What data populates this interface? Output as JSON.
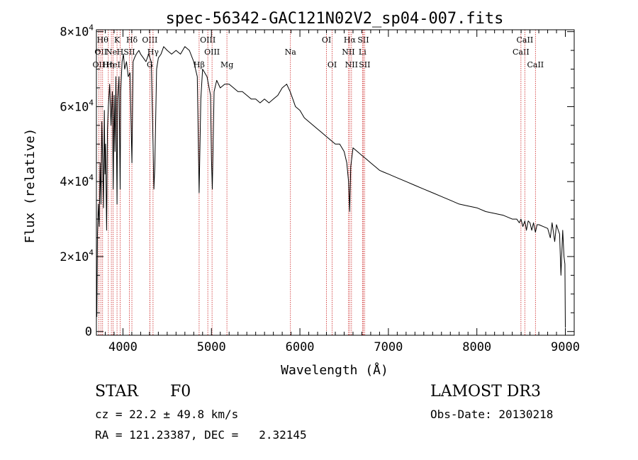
{
  "chart_data": {
    "type": "line",
    "title": "spec-56342-GAC121N02V2_sp04-007.fits",
    "xlabel": "Wavelength (Å)",
    "ylabel": "Flux (relative)",
    "xlim": [
      3700,
      9100
    ],
    "ylim": [
      -1000,
      80500
    ],
    "x_ticks": [
      {
        "value": 4000,
        "label": "4000"
      },
      {
        "value": 5000,
        "label": "5000"
      },
      {
        "value": 6000,
        "label": "6000"
      },
      {
        "value": 7000,
        "label": "7000"
      },
      {
        "value": 8000,
        "label": "8000"
      },
      {
        "value": 9000,
        "label": "9000"
      }
    ],
    "y_ticks": [
      {
        "value": 0,
        "label": "0",
        "exp": ""
      },
      {
        "value": 20000,
        "label": "2×10",
        "exp": "4"
      },
      {
        "value": 40000,
        "label": "4×10",
        "exp": "4"
      },
      {
        "value": 60000,
        "label": "6×10",
        "exp": "4"
      },
      {
        "value": 80000,
        "label": "8×10",
        "exp": "4"
      }
    ],
    "grid": false,
    "series": [
      {
        "name": "flux",
        "color": "#000000",
        "x": [
          3700,
          3705,
          3712,
          3722,
          3732,
          3742,
          3752,
          3762,
          3772,
          3780,
          3790,
          3797,
          3803,
          3815,
          3825,
          3835,
          3850,
          3865,
          3880,
          3890,
          3900,
          3910,
          3920,
          3933,
          3940,
          3955,
          3968,
          3975,
          3990,
          4005,
          4020,
          4040,
          4060,
          4080,
          4101,
          4115,
          4130,
          4150,
          4180,
          4200,
          4230,
          4260,
          4290,
          4320,
          4340,
          4350,
          4360,
          4380,
          4400,
          4430,
          4460,
          4500,
          4550,
          4600,
          4650,
          4700,
          4750,
          4800,
          4840,
          4861,
          4880,
          4900,
          4950,
          4990,
          5000,
          5010,
          5030,
          5060,
          5100,
          5150,
          5200,
          5250,
          5300,
          5350,
          5400,
          5450,
          5500,
          5550,
          5600,
          5650,
          5700,
          5750,
          5800,
          5850,
          5890,
          5920,
          5950,
          6000,
          6050,
          6100,
          6150,
          6200,
          6250,
          6300,
          6350,
          6400,
          6450,
          6500,
          6530,
          6550,
          6563,
          6575,
          6600,
          6650,
          6700,
          6750,
          6800,
          6850,
          6900,
          6950,
          7000,
          7100,
          7200,
          7300,
          7400,
          7500,
          7600,
          7700,
          7800,
          7900,
          8000,
          8100,
          8200,
          8300,
          8400,
          8450,
          8480,
          8498,
          8520,
          8542,
          8560,
          8580,
          8600,
          8620,
          8640,
          8662,
          8680,
          8700,
          8750,
          8800,
          8830,
          8850,
          8880,
          8900,
          8920,
          8935,
          8950,
          8970,
          8985,
          8995,
          9000
        ],
        "values": [
          14000,
          4000,
          26000,
          34000,
          28000,
          45000,
          34000,
          56000,
          44000,
          33000,
          59000,
          42000,
          50000,
          27000,
          54000,
          60000,
          66000,
          55000,
          64000,
          38000,
          63000,
          48000,
          68000,
          34000,
          62000,
          68000,
          38000,
          64000,
          72000,
          74000,
          70000,
          72000,
          68000,
          69000,
          45000,
          72000,
          73000,
          74000,
          75000,
          74000,
          73000,
          72000,
          74000,
          72000,
          50000,
          38000,
          44000,
          70000,
          73000,
          74000,
          76000,
          75000,
          74000,
          75000,
          74000,
          76000,
          75000,
          72000,
          68000,
          37000,
          62000,
          70000,
          68000,
          63000,
          46000,
          38000,
          64000,
          67000,
          65000,
          66000,
          66000,
          65000,
          64000,
          64000,
          63000,
          62000,
          62000,
          61000,
          62000,
          61000,
          62000,
          63000,
          65000,
          66000,
          64000,
          62000,
          60000,
          59000,
          57000,
          56000,
          55000,
          54000,
          53000,
          52000,
          51000,
          50000,
          50000,
          48000,
          45000,
          40000,
          32000,
          44000,
          49000,
          48000,
          47000,
          46000,
          45000,
          44000,
          43000,
          42500,
          42000,
          41000,
          40000,
          39000,
          38000,
          37000,
          36000,
          35000,
          34000,
          33500,
          33000,
          32000,
          31500,
          31000,
          30000,
          30000,
          29000,
          30000,
          28000,
          29500,
          27000,
          29500,
          29000,
          27000,
          29000,
          26500,
          28500,
          28500,
          28000,
          27500,
          25000,
          29000,
          24000,
          28500,
          27000,
          26000,
          15000,
          27000,
          20000,
          18000,
          1000
        ]
      }
    ],
    "line_markers": [
      {
        "wavelength": 3727,
        "label": "OII",
        "row": 2
      },
      {
        "wavelength": 3750,
        "label": "OII",
        "row": 1
      },
      {
        "wavelength": 3770,
        "label": "Hθ",
        "row": 0
      },
      {
        "wavelength": 3835,
        "label": "Hη",
        "row": 2
      },
      {
        "wavelength": 3869,
        "label": "Ne",
        "row": 1
      },
      {
        "wavelength": 3889,
        "label": "HeI",
        "row": 2
      },
      {
        "wavelength": 3933,
        "label": "K",
        "row": 0
      },
      {
        "wavelength": 3968,
        "label": "H",
        "row": 1
      },
      {
        "wavelength": 4101,
        "label": "Hδ",
        "row": 0
      },
      {
        "wavelength": 4072,
        "label": "SII",
        "row": 1
      },
      {
        "wavelength": 4304,
        "label": "OIII",
        "row": 0
      },
      {
        "wavelength": 4304,
        "label": "G",
        "row": 2
      },
      {
        "wavelength": 4340,
        "label": "Hγ",
        "row": 1
      },
      {
        "wavelength": 4861,
        "label": "Hβ",
        "row": 2
      },
      {
        "wavelength": 4959,
        "label": "OIII",
        "row": 0
      },
      {
        "wavelength": 5007,
        "label": "OIII",
        "row": 1
      },
      {
        "wavelength": 5175,
        "label": "Mg",
        "row": 2
      },
      {
        "wavelength": 5893,
        "label": "Na",
        "row": 1
      },
      {
        "wavelength": 6300,
        "label": "OI",
        "row": 0
      },
      {
        "wavelength": 6364,
        "label": "OI",
        "row": 2
      },
      {
        "wavelength": 6563,
        "label": "Hα",
        "row": 0
      },
      {
        "wavelength": 6548,
        "label": "NII",
        "row": 1
      },
      {
        "wavelength": 6583,
        "label": "NII",
        "row": 2
      },
      {
        "wavelength": 6707,
        "label": "Li",
        "row": 1
      },
      {
        "wavelength": 6716,
        "label": "SII",
        "row": 0
      },
      {
        "wavelength": 6731,
        "label": "SII",
        "row": 2
      },
      {
        "wavelength": 8498,
        "label": "CaII",
        "row": 1
      },
      {
        "wavelength": 8542,
        "label": "CaII",
        "row": 0
      },
      {
        "wavelength": 8662,
        "label": "CaII",
        "row": 2
      }
    ]
  },
  "info": {
    "class_label": "STAR",
    "subclass": "F0",
    "survey": "LAMOST DR3",
    "redshift": "cz = 22.2 ± 49.8 km/s",
    "obs_date": "Obs-Date: 20130218",
    "coords": "RA = 121.23387, DEC =   2.32145"
  },
  "colors": {
    "line_marker": "#cc2222",
    "spectrum": "#000000",
    "axes": "#000000"
  }
}
